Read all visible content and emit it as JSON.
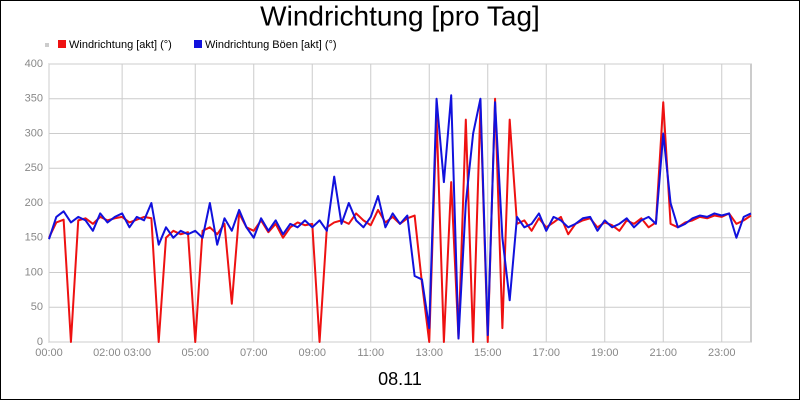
{
  "chart_data": {
    "type": "line",
    "title": "Windrichtung [pro Tag]",
    "x_label": "08.11",
    "x": [
      0,
      0.25,
      0.5,
      0.75,
      1,
      1.25,
      1.5,
      1.75,
      2,
      2.25,
      2.5,
      2.75,
      3,
      3.25,
      3.5,
      3.75,
      4,
      4.25,
      4.5,
      4.75,
      5,
      5.25,
      5.5,
      5.75,
      6,
      6.25,
      6.5,
      6.75,
      7,
      7.25,
      7.5,
      7.75,
      8,
      8.25,
      8.5,
      8.75,
      9,
      9.25,
      9.5,
      9.75,
      10,
      10.25,
      10.5,
      10.75,
      11,
      11.25,
      11.5,
      11.75,
      12,
      12.25,
      12.5,
      12.75,
      13,
      13.25,
      13.5,
      13.75,
      14,
      14.25,
      14.5,
      14.75,
      15,
      15.25,
      15.5,
      15.75,
      16,
      16.25,
      16.5,
      16.75,
      17,
      17.25,
      17.5,
      17.75,
      18,
      18.25,
      18.5,
      18.75,
      19,
      19.25,
      19.5,
      19.75,
      20,
      20.25,
      20.5,
      20.75,
      21,
      21.25,
      21.5,
      21.75,
      22,
      22.25,
      22.5,
      22.75,
      23,
      23.25,
      23.5,
      23.75,
      24
    ],
    "series": [
      {
        "name": "Windrichtung [akt] (°)",
        "color": "#ee1111",
        "values": [
          150,
          172,
          176,
          0,
          175,
          178,
          170,
          180,
          175,
          178,
          180,
          172,
          176,
          180,
          178,
          0,
          150,
          160,
          155,
          158,
          0,
          160,
          165,
          155,
          170,
          55,
          185,
          165,
          160,
          175,
          158,
          170,
          150,
          165,
          172,
          168,
          170,
          0,
          165,
          172,
          175,
          170,
          185,
          175,
          168,
          190,
          172,
          180,
          170,
          178,
          182,
          85,
          0,
          325,
          0,
          230,
          5,
          320,
          0,
          340,
          0,
          350,
          20,
          320,
          170,
          175,
          160,
          178,
          165,
          172,
          180,
          155,
          170,
          175,
          178,
          165,
          172,
          168,
          160,
          175,
          170,
          178,
          165,
          172,
          345,
          170,
          165,
          172,
          175,
          180,
          178,
          182,
          180,
          185,
          170,
          175,
          182
        ]
      },
      {
        "name": "Windrichtung Böen [akt] (°)",
        "color": "#1111dd",
        "values": [
          148,
          180,
          188,
          172,
          180,
          175,
          160,
          185,
          172,
          180,
          185,
          165,
          180,
          175,
          200,
          140,
          165,
          150,
          160,
          155,
          160,
          150,
          200,
          140,
          178,
          160,
          190,
          165,
          150,
          178,
          160,
          175,
          155,
          170,
          165,
          175,
          165,
          175,
          160,
          238,
          170,
          200,
          175,
          165,
          180,
          210,
          165,
          185,
          170,
          182,
          95,
          90,
          20,
          350,
          230,
          355,
          5,
          200,
          300,
          350,
          10,
          345,
          150,
          60,
          180,
          165,
          170,
          185,
          160,
          180,
          175,
          165,
          170,
          178,
          180,
          160,
          175,
          165,
          170,
          178,
          165,
          175,
          180,
          170,
          300,
          200,
          165,
          170,
          178,
          182,
          180,
          185,
          182,
          185,
          150,
          180,
          185
        ]
      }
    ],
    "xlim": [
      0,
      24
    ],
    "xticks": [
      {
        "value": 0,
        "label": "00:00"
      },
      {
        "value": 2.5,
        "label": "02:00 03:00"
      },
      {
        "value": 5,
        "label": "05:00"
      },
      {
        "value": 7,
        "label": "07:00"
      },
      {
        "value": 9,
        "label": "09:00"
      },
      {
        "value": 11,
        "label": "11:00"
      },
      {
        "value": 13,
        "label": "13:00"
      },
      {
        "value": 15,
        "label": "15:00"
      },
      {
        "value": 17,
        "label": "17:00"
      },
      {
        "value": 19,
        "label": "19:00"
      },
      {
        "value": 21,
        "label": "21:00"
      },
      {
        "value": 23,
        "label": "23:00"
      }
    ],
    "ylim": [
      0,
      400
    ],
    "yticks": [
      0,
      50,
      100,
      150,
      200,
      250,
      300,
      350,
      400
    ],
    "grid": true
  }
}
